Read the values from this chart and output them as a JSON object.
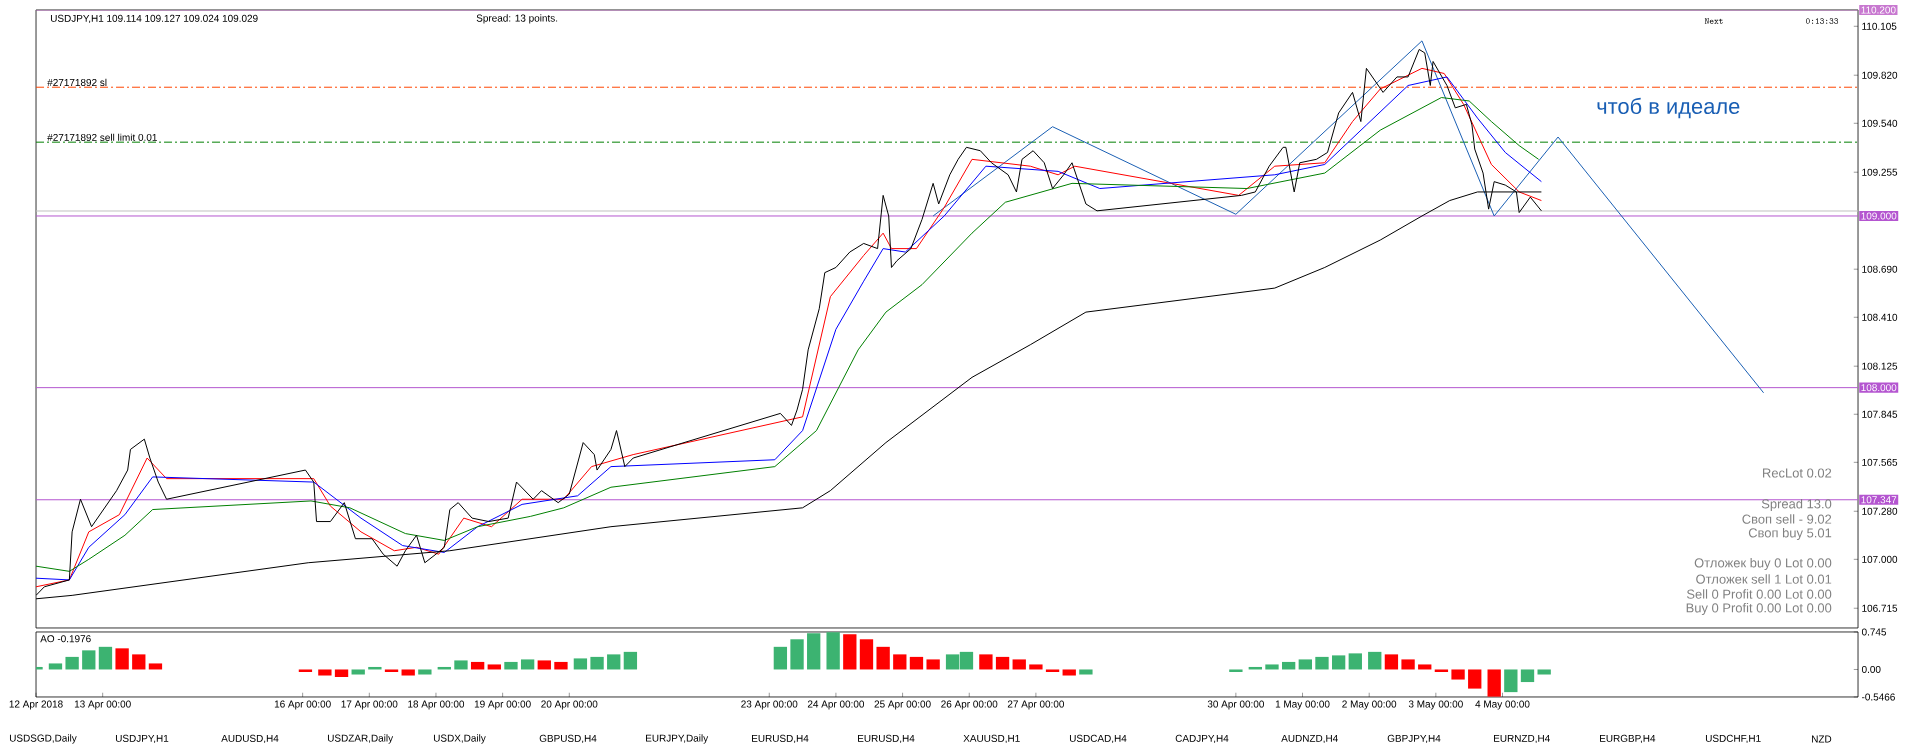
{
  "chart_data": [
    {
      "type": "line",
      "title": "USDJPY,H1  109.114 109.127 109.024 109.029",
      "subtitle": "Spread: 13 points.",
      "xlim": [
        "2018-04-12T00:00",
        "2018-05-09T08:00"
      ],
      "ylim": [
        106.6,
        110.2
      ],
      "tick_labels": "y",
      "yticks": [
        {
          "value": 110.105,
          "label": "110.105"
        },
        {
          "value": 109.82,
          "label": "109.820"
        },
        {
          "value": 109.54,
          "label": "109.540"
        },
        {
          "value": 109.255,
          "label": "109.255"
        },
        {
          "value": 108.69,
          "label": "108.690"
        },
        {
          "value": 108.41,
          "label": "108.410"
        },
        {
          "value": 108.125,
          "label": "108.125"
        },
        {
          "value": 107.845,
          "label": "107.845"
        },
        {
          "value": 107.565,
          "label": "107.565"
        },
        {
          "value": 107.28,
          "label": "107.280"
        },
        {
          "value": 107.0,
          "label": "107.000"
        },
        {
          "value": 106.715,
          "label": "106.715"
        }
      ],
      "series": [
        {
          "color": "#000000",
          "x": [
            "2018-04-12T00:00",
            "2018-04-12T03:00",
            "2018-04-12T12:00",
            "2018-04-12T13:00",
            "2018-04-12T16:00",
            "2018-04-12T20:00",
            "2018-04-13T05:00",
            "2018-04-13T09:00",
            "2018-04-13T10:00",
            "2018-04-13T15:00",
            "2018-04-13T17:00",
            "2018-04-13T20:00",
            "2018-04-13T23:00",
            "2018-04-16T01:00",
            "2018-04-16T04:00",
            "2018-04-16T05:00",
            "2018-04-16T10:00",
            "2018-04-16T15:00",
            "2018-04-16T19:00",
            "2018-04-17T01:00",
            "2018-04-17T05:00",
            "2018-04-17T10:00",
            "2018-04-17T13:00",
            "2018-04-17T17:00",
            "2018-04-17T20:00",
            "2018-04-18T00:00",
            "2018-04-18T03:00",
            "2018-04-18T05:00",
            "2018-04-18T08:00",
            "2018-04-18T13:00",
            "2018-04-18T19:00",
            "2018-04-19T02:00",
            "2018-04-19T05:00",
            "2018-04-19T11:00",
            "2018-04-19T14:00",
            "2018-04-19T20:00",
            "2018-04-20T00:00",
            "2018-04-20T05:00",
            "2018-04-20T09:00",
            "2018-04-20T10:00",
            "2018-04-20T15:00",
            "2018-04-20T17:00",
            "2018-04-20T20:00",
            "2018-04-20T23:00",
            "2018-04-23T04:00",
            "2018-04-23T08:00",
            "2018-04-23T10:00",
            "2018-04-23T12:00",
            "2018-04-23T14:00",
            "2018-04-23T18:00",
            "2018-04-23T20:00",
            "2018-04-24T00:00",
            "2018-04-24T05:00",
            "2018-04-24T10:00",
            "2018-04-24T15:00",
            "2018-04-24T17:00",
            "2018-04-24T19:00",
            "2018-04-24T20:00",
            "2018-04-24T22:00",
            "2018-04-25T03:00",
            "2018-04-25T07:00",
            "2018-04-25T11:00",
            "2018-04-25T13:00",
            "2018-04-25T17:00",
            "2018-04-25T20:00",
            "2018-04-25T23:00",
            "2018-04-26T04:00",
            "2018-04-26T08:00",
            "2018-04-26T14:00",
            "2018-04-26T17:00",
            "2018-04-26T19:00",
            "2018-04-26T23:00",
            "2018-04-27T03:00",
            "2018-04-27T06:00",
            "2018-04-27T10:00",
            "2018-04-27T13:00",
            "2018-04-27T18:00",
            "2018-04-27T22:00",
            "2018-04-30T02:00",
            "2018-04-30T07:00",
            "2018-04-30T12:00",
            "2018-04-30T17:00",
            "2018-04-30T18:00",
            "2018-04-30T21:00",
            "2018-04-30T23:00",
            "2018-05-01T05:00",
            "2018-05-01T09:00",
            "2018-05-01T13:00",
            "2018-05-01T18:00",
            "2018-05-01T21:00",
            "2018-05-01T23:00",
            "2018-05-02T05:00",
            "2018-05-02T10:00",
            "2018-05-02T14:00",
            "2018-05-02T18:00",
            "2018-05-02T20:00",
            "2018-05-02T22:00",
            "2018-05-02T23:00",
            "2018-05-03T04:00",
            "2018-05-03T07:00",
            "2018-05-03T11:00",
            "2018-05-03T13:00",
            "2018-05-03T14:00",
            "2018-05-03T17:00",
            "2018-05-03T19:00",
            "2018-05-03T21:00",
            "2018-05-04T01:00",
            "2018-05-04T05:00",
            "2018-05-04T06:00",
            "2018-05-04T10:00",
            "2018-05-04T12:00",
            "2018-05-04T14:00"
          ],
          "values": [
            106.79,
            106.84,
            106.88,
            107.16,
            107.35,
            107.19,
            107.4,
            107.52,
            107.64,
            107.7,
            107.59,
            107.45,
            107.35,
            107.52,
            107.45,
            107.22,
            107.22,
            107.33,
            107.12,
            107.12,
            107.03,
            106.96,
            107.05,
            107.14,
            106.98,
            107.03,
            107.07,
            107.29,
            107.33,
            107.24,
            107.22,
            107.24,
            107.45,
            107.35,
            107.4,
            107.33,
            107.38,
            107.68,
            107.61,
            107.52,
            107.64,
            107.75,
            107.54,
            107.59,
            107.85,
            107.78,
            107.87,
            107.99,
            108.22,
            108.46,
            108.67,
            108.7,
            108.79,
            108.84,
            108.81,
            109.12,
            109.0,
            108.7,
            108.74,
            108.81,
            108.98,
            109.19,
            109.07,
            109.24,
            109.33,
            109.4,
            109.38,
            109.31,
            109.24,
            109.14,
            109.33,
            109.38,
            109.31,
            109.16,
            109.24,
            109.31,
            109.07,
            109.03,
            109.12,
            109.14,
            109.29,
            109.4,
            109.4,
            109.14,
            109.31,
            109.33,
            109.37,
            109.6,
            109.72,
            109.55,
            109.86,
            109.72,
            109.81,
            109.81,
            109.97,
            109.95,
            109.76,
            109.9,
            109.76,
            109.63,
            109.65,
            109.53,
            109.39,
            109.25,
            109.04,
            109.2,
            109.18,
            109.14,
            109.02,
            109.11,
            109.07,
            109.03
          ]
        },
        {
          "color": "#000000",
          "x": [
            "2018-04-12T00:00",
            "2018-04-12T13:00",
            "2018-04-16T02:00",
            "2018-04-18T05:00",
            "2018-04-20T15:00",
            "2018-04-23T12:00",
            "2018-04-23T22:00",
            "2018-04-24T18:00",
            "2018-04-26T01:00",
            "2018-04-26T22:00",
            "2018-04-27T18:00",
            "2018-04-30T14:00",
            "2018-05-01T08:00",
            "2018-05-02T04:00",
            "2018-05-02T19:00",
            "2018-05-03T05:00",
            "2018-05-03T15:00",
            "2018-05-04T14:00"
          ],
          "values": [
            106.77,
            106.79,
            106.98,
            107.05,
            107.19,
            107.3,
            107.4,
            107.68,
            108.06,
            108.25,
            108.44,
            108.58,
            108.7,
            108.86,
            109.0,
            109.09,
            109.14,
            109.14
          ]
        },
        {
          "color": "#008000",
          "x": [
            "2018-04-12T00:00",
            "2018-04-12T12:00",
            "2018-04-12T19:00",
            "2018-04-13T08:00",
            "2018-04-13T18:00",
            "2018-04-16T03:00",
            "2018-04-16T17:00",
            "2018-04-17T13:00",
            "2018-04-18T03:00",
            "2018-04-18T15:00",
            "2018-04-19T10:00",
            "2018-04-19T22:00",
            "2018-04-20T15:00",
            "2018-04-23T02:00",
            "2018-04-23T17:00",
            "2018-04-24T08:00",
            "2018-04-24T18:00",
            "2018-04-25T07:00",
            "2018-04-26T01:00",
            "2018-04-26T13:00",
            "2018-04-27T13:00",
            "2018-04-30T04:00",
            "2018-05-01T08:00",
            "2018-05-02T04:00",
            "2018-05-03T02:00",
            "2018-05-03T12:00",
            "2018-05-03T20:00",
            "2018-05-04T06:00",
            "2018-05-04T13:00"
          ],
          "values": [
            106.96,
            106.93,
            107.0,
            107.14,
            107.29,
            107.34,
            107.3,
            107.15,
            107.11,
            107.19,
            107.25,
            107.3,
            107.42,
            107.54,
            107.75,
            108.22,
            108.44,
            108.6,
            108.9,
            109.08,
            109.19,
            109.16,
            109.25,
            109.5,
            109.69,
            109.67,
            109.55,
            109.41,
            109.33
          ]
        },
        {
          "color": "#0000ff",
          "x": [
            "2018-04-12T00:00",
            "2018-04-12T12:00",
            "2018-04-12T19:00",
            "2018-04-13T08:00",
            "2018-04-13T18:00",
            "2018-04-16T04:00",
            "2018-04-16T21:00",
            "2018-04-17T12:00",
            "2018-04-18T03:00",
            "2018-04-18T15:00",
            "2018-04-19T07:00",
            "2018-04-20T03:00",
            "2018-04-20T15:00",
            "2018-04-23T02:00",
            "2018-04-23T12:00",
            "2018-04-24T00:00",
            "2018-04-24T10:00",
            "2018-04-24T17:00",
            "2018-04-25T01:00",
            "2018-04-25T15:00",
            "2018-04-26T06:00",
            "2018-04-27T08:00",
            "2018-04-27T23:00",
            "2018-04-30T14:00",
            "2018-05-01T08:00",
            "2018-05-01T23:00",
            "2018-05-02T14:00",
            "2018-05-03T04:00",
            "2018-05-03T15:00",
            "2018-05-04T01:00",
            "2018-05-04T14:00"
          ],
          "values": [
            106.89,
            106.88,
            107.07,
            107.26,
            107.48,
            107.45,
            107.24,
            107.08,
            107.04,
            107.19,
            107.32,
            107.37,
            107.54,
            107.58,
            107.75,
            108.34,
            108.62,
            108.81,
            108.79,
            109.0,
            109.29,
            109.26,
            109.16,
            109.24,
            109.3,
            109.53,
            109.76,
            109.81,
            109.57,
            109.37,
            109.2
          ]
        },
        {
          "color": "#ff0000",
          "x": [
            "2018-04-12T00:00",
            "2018-04-12T12:00",
            "2018-04-12T19:00",
            "2018-04-13T06:00",
            "2018-04-13T16:00",
            "2018-04-13T23:00",
            "2018-04-16T04:00",
            "2018-04-16T10:00",
            "2018-04-16T21:00",
            "2018-04-17T09:00",
            "2018-04-17T17:00",
            "2018-04-18T01:00",
            "2018-04-18T10:00",
            "2018-04-18T20:00",
            "2018-04-19T07:00",
            "2018-04-19T22:00",
            "2018-04-20T08:00",
            "2018-04-20T23:00",
            "2018-04-23T12:00",
            "2018-04-23T22:00",
            "2018-04-24T10:00",
            "2018-04-24T17:00",
            "2018-04-24T20:00",
            "2018-04-25T05:00",
            "2018-04-25T15:00",
            "2018-04-26T01:00",
            "2018-04-26T22:00",
            "2018-04-27T08:00",
            "2018-04-27T14:00",
            "2018-04-30T01:00",
            "2018-04-30T14:00",
            "2018-05-01T08:00",
            "2018-05-01T18:00",
            "2018-05-02T04:00",
            "2018-05-02T19:00",
            "2018-05-03T03:00",
            "2018-05-03T10:00",
            "2018-05-03T20:00",
            "2018-05-04T06:00",
            "2018-05-04T14:00"
          ],
          "values": [
            106.84,
            106.88,
            107.16,
            107.26,
            107.59,
            107.47,
            107.47,
            107.31,
            107.16,
            107.05,
            107.07,
            107.03,
            107.24,
            107.19,
            107.35,
            107.35,
            107.54,
            107.61,
            107.83,
            108.53,
            108.77,
            108.9,
            108.81,
            108.81,
            109.05,
            109.33,
            109.29,
            109.24,
            109.29,
            109.12,
            109.29,
            109.31,
            109.55,
            109.74,
            109.86,
            109.83,
            109.65,
            109.3,
            109.14,
            109.09
          ]
        },
        {
          "color": "#1a5fb4",
          "x": [
            "2018-04-25T11:00",
            "2018-04-27T06:00",
            "2018-04-30T00:00",
            "2018-05-02T19:00",
            "2018-05-03T21:00",
            "2018-05-04T20:00",
            "2018-05-07T22:00"
          ],
          "values": [
            109.0,
            109.52,
            109.01,
            110.02,
            109.0,
            109.46,
            107.97
          ]
        }
      ],
      "ref_lines": [
        {
          "axis": "y",
          "value": 110.2,
          "label": "110.200",
          "color": "#c878d0",
          "line_style": "solid"
        },
        {
          "axis": "y",
          "value": 109.75,
          "label": "#27171892 sl",
          "color": "#ff4500",
          "line_style": "dashed"
        },
        {
          "axis": "y",
          "value": 109.43,
          "label": "#27171892 sell limit 0.01",
          "color": "#008000",
          "line_style": "dashed"
        },
        {
          "axis": "y",
          "value": 109.029,
          "color": "#c0c0c0",
          "line_style": "solid"
        },
        {
          "axis": "y",
          "value": 109.0,
          "label": "109.000",
          "color": "#b455d0",
          "line_style": "solid"
        },
        {
          "axis": "y",
          "value": 108.0,
          "label": "108.000",
          "color": "#b455d0",
          "line_style": "solid"
        },
        {
          "axis": "y",
          "value": 107.347,
          "label": "107.347",
          "color": "#b455d0",
          "line_style": "solid"
        }
      ],
      "annotations": [
        "Next",
        "0:13:33",
        "чтоб в идеале",
        "RecLot   0.02",
        "Spread   13.0",
        "Своп sell  - 9.02",
        "Своп buy   5.01",
        "Отложек buy 0  Lot 0.00",
        "Отложек sell 1  Lot 0.01",
        "Sell 0  Profit 0.00  Lot 0.00",
        "Buy 0  Profit 0.00  Lot 0.00"
      ]
    },
    {
      "type": "bar",
      "title": "AO -0.1976",
      "xlim": [
        "2018-04-12T00:00",
        "2018-05-09T08:00"
      ],
      "ylim": [
        -0.5466,
        0.745
      ],
      "yticks": [
        {
          "value": 0.745,
          "label": "0.745"
        },
        {
          "value": 0,
          "label": "0.00"
        },
        {
          "value": -0.5466,
          "label": "-0.5466"
        }
      ],
      "xticks": [
        {
          "value": "2018-04-12T00:00",
          "label": "12 Apr 2018"
        },
        {
          "value": "2018-04-13T00:00",
          "label": "13 Apr 00:00"
        },
        {
          "value": "2018-04-16T00:00",
          "label": "16 Apr 00:00"
        },
        {
          "value": "2018-04-17T00:00",
          "label": "17 Apr 00:00"
        },
        {
          "value": "2018-04-18T00:00",
          "label": "18 Apr 00:00"
        },
        {
          "value": "2018-04-19T00:00",
          "label": "19 Apr 00:00"
        },
        {
          "value": "2018-04-20T00:00",
          "label": "20 Apr 00:00"
        },
        {
          "value": "2018-04-23T00:00",
          "label": "23 Apr 00:00"
        },
        {
          "value": "2018-04-24T00:00",
          "label": "24 Apr 00:00"
        },
        {
          "value": "2018-04-25T00:00",
          "label": "25 Apr 00:00"
        },
        {
          "value": "2018-04-26T00:00",
          "label": "26 Apr 00:00"
        },
        {
          "value": "2018-04-27T00:00",
          "label": "27 Apr 00:00"
        },
        {
          "value": "2018-04-30T00:00",
          "label": "30 Apr 00:00"
        },
        {
          "value": "2018-05-01T00:00",
          "label": "1 May 00:00"
        },
        {
          "value": "2018-05-02T00:00",
          "label": "2 May 00:00"
        },
        {
          "value": "2018-05-03T00:00",
          "label": "3 May 00:00"
        },
        {
          "value": "2018-05-04T00:00",
          "label": "4 May 00:00"
        }
      ],
      "x": [
        "2018-04-12T00:00",
        "2018-04-12T07:00",
        "2018-04-12T13:00",
        "2018-04-12T19:00",
        "2018-04-13T01:00",
        "2018-04-13T07:00",
        "2018-04-13T13:00",
        "2018-04-13T19:00",
        "2018-04-16T01:00",
        "2018-04-16T08:00",
        "2018-04-16T14:00",
        "2018-04-16T20:00",
        "2018-04-17T02:00",
        "2018-04-17T08:00",
        "2018-04-17T14:00",
        "2018-04-17T20:00",
        "2018-04-18T03:00",
        "2018-04-18T09:00",
        "2018-04-18T15:00",
        "2018-04-18T21:00",
        "2018-04-19T03:00",
        "2018-04-19T09:00",
        "2018-04-19T15:00",
        "2018-04-19T21:00",
        "2018-04-20T04:00",
        "2018-04-20T10:00",
        "2018-04-20T16:00",
        "2018-04-20T22:00",
        "2018-04-23T04:00",
        "2018-04-23T10:00",
        "2018-04-23T16:00",
        "2018-04-23T23:00",
        "2018-04-24T05:00",
        "2018-04-24T11:00",
        "2018-04-24T17:00",
        "2018-04-24T23:00",
        "2018-04-25T05:00",
        "2018-04-25T11:00",
        "2018-04-25T18:00",
        "2018-04-25T23:00",
        "2018-04-26T06:00",
        "2018-04-26T12:00",
        "2018-04-26T18:00",
        "2018-04-27T00:00",
        "2018-04-27T06:00",
        "2018-04-27T12:00",
        "2018-04-27T18:00",
        "2018-04-30T00:00",
        "2018-04-30T07:00",
        "2018-04-30T13:00",
        "2018-04-30T19:00",
        "2018-05-01T01:00",
        "2018-05-01T07:00",
        "2018-05-01T13:00",
        "2018-05-01T19:00",
        "2018-05-02T02:00",
        "2018-05-02T08:00",
        "2018-05-02T14:00",
        "2018-05-02T20:00",
        "2018-05-03T02:00",
        "2018-05-03T08:00",
        "2018-05-03T14:00",
        "2018-05-03T21:00",
        "2018-05-04T03:00",
        "2018-05-04T09:00",
        "2018-05-04T15:00"
      ],
      "values": [
        0.05,
        0.12,
        0.25,
        0.38,
        0.45,
        0.42,
        0.3,
        0.12,
        -0.05,
        -0.12,
        -0.15,
        -0.1,
        0.05,
        -0.05,
        -0.12,
        -0.1,
        0.05,
        0.18,
        0.15,
        0.1,
        0.15,
        0.2,
        0.18,
        0.15,
        0.22,
        0.25,
        0.3,
        0.35,
        0.45,
        0.6,
        0.72,
        0.74,
        0.7,
        0.6,
        0.45,
        0.3,
        0.25,
        0.2,
        0.3,
        0.35,
        0.3,
        0.25,
        0.2,
        0.1,
        -0.05,
        -0.12,
        -0.1,
        -0.05,
        0.05,
        0.1,
        0.15,
        0.2,
        0.25,
        0.28,
        0.32,
        0.35,
        0.3,
        0.2,
        0.1,
        -0.05,
        -0.2,
        -0.38,
        -0.54,
        -0.45,
        -0.25,
        -0.1
      ],
      "colors": [
        "#3cb371",
        "#3cb371",
        "#3cb371",
        "#3cb371",
        "#3cb371",
        "#ff0000",
        "#ff0000",
        "#ff0000",
        "#ff0000",
        "#ff0000",
        "#ff0000",
        "#3cb371",
        "#3cb371",
        "#ff0000",
        "#ff0000",
        "#3cb371",
        "#3cb371",
        "#3cb371",
        "#ff0000",
        "#ff0000",
        "#3cb371",
        "#3cb371",
        "#ff0000",
        "#ff0000",
        "#3cb371",
        "#3cb371",
        "#3cb371",
        "#3cb371",
        "#3cb371",
        "#3cb371",
        "#3cb371",
        "#3cb371",
        "#ff0000",
        "#ff0000",
        "#ff0000",
        "#ff0000",
        "#ff0000",
        "#ff0000",
        "#3cb371",
        "#3cb371",
        "#ff0000",
        "#ff0000",
        "#ff0000",
        "#ff0000",
        "#ff0000",
        "#ff0000",
        "#3cb371",
        "#3cb371",
        "#3cb371",
        "#3cb371",
        "#3cb371",
        "#3cb371",
        "#3cb371",
        "#3cb371",
        "#3cb371",
        "#3cb371",
        "#ff0000",
        "#ff0000",
        "#ff0000",
        "#ff0000",
        "#ff0000",
        "#ff0000",
        "#ff0000",
        "#3cb371",
        "#3cb371",
        "#3cb371"
      ],
      "annotations": [
        "USDSGD,Daily",
        "USDJPY,H1",
        "AUDUSD,H4",
        "USDZAR,Daily",
        "USDX,Daily",
        "GBPUSD,H4",
        "EURJPY,Daily",
        "EURUSD,H4",
        "EURUSD,H4",
        "XAUUSD,H1",
        "USDCAD,H4",
        "CADJPY,H4",
        "AUDNZD,H4",
        "GBPJPY,H4",
        "EURNZD,H4",
        "EURGBP,H4",
        "USDCHF,H1",
        "NZD"
      ]
    }
  ]
}
